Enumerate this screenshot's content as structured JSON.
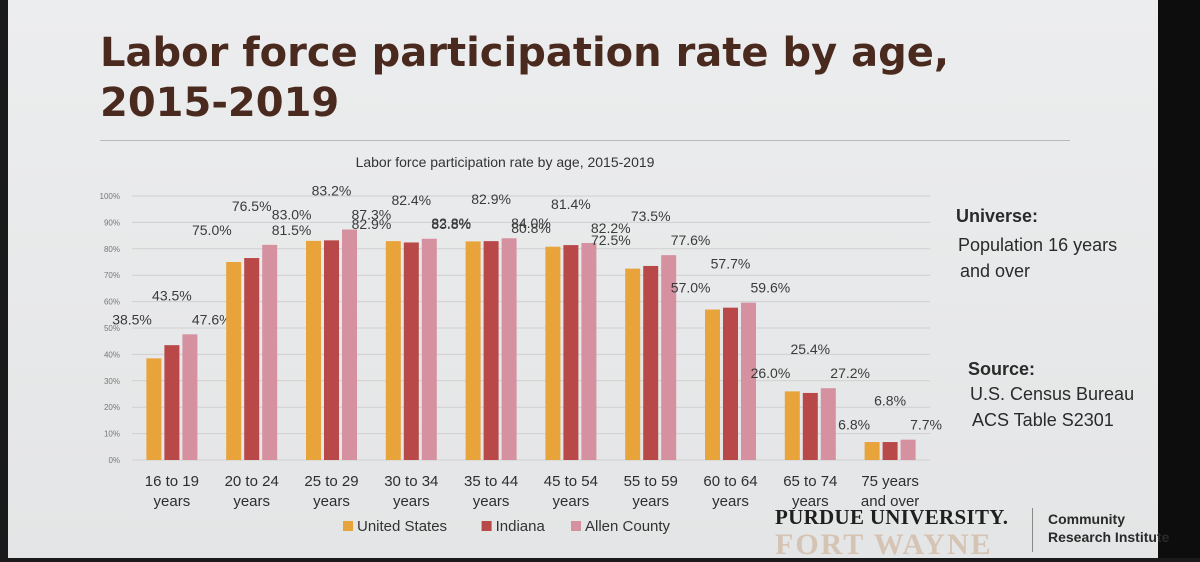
{
  "slide": {
    "title_line1": "Labor force participation rate by age,",
    "title_line2": "2015-2019"
  },
  "side": {
    "universe_label": "Universe:",
    "universe_line1": "Population 16 years",
    "universe_line2": "and over",
    "source_label": "Source:",
    "source_line1": "U.S. Census Bureau",
    "source_line2": "ACS Table S2301"
  },
  "footer": {
    "university": "PURDUE UNIVERSITY.",
    "campus": "FORT WAYNE",
    "institute_line1": "Community",
    "institute_line2": "Research Institute"
  },
  "chart_data": {
    "type": "bar",
    "title": "Labor force participation rate by age, 2015-2019",
    "categories": [
      [
        "16 to 19",
        "years"
      ],
      [
        "20 to 24",
        "years"
      ],
      [
        "25 to 29",
        "years"
      ],
      [
        "30 to 34",
        "years"
      ],
      [
        "35 to 44",
        "years"
      ],
      [
        "45 to 54",
        "years"
      ],
      [
        "55 to 59",
        "years"
      ],
      [
        "60 to 64",
        "years"
      ],
      [
        "65 to 74",
        "years"
      ],
      [
        "75 years",
        "and over"
      ]
    ],
    "series": [
      {
        "name": "United States",
        "color": "#e8a33b",
        "values": [
          38.5,
          75.0,
          83.0,
          82.9,
          82.8,
          80.8,
          72.5,
          57.0,
          26.0,
          6.8
        ],
        "labels": [
          "38.5%",
          "75.0%",
          "83.0%",
          "82.9%",
          "82.8%",
          "80.8%",
          "72.5%",
          "57.0%",
          "26.0%",
          "6.8%"
        ]
      },
      {
        "name": "Indiana",
        "color": "#b94848",
        "values": [
          43.5,
          76.5,
          83.2,
          82.4,
          82.9,
          81.4,
          73.5,
          57.7,
          25.4,
          6.8
        ],
        "labels": [
          "43.5%",
          "76.5%",
          "83.2%",
          "82.4%",
          "82.9%",
          "81.4%",
          "73.5%",
          "57.7%",
          "25.4%",
          "6.8%"
        ]
      },
      {
        "name": "Allen County",
        "color": "#d591a0",
        "values": [
          47.6,
          81.5,
          87.3,
          83.8,
          84.0,
          82.2,
          77.6,
          59.6,
          27.2,
          7.7
        ],
        "labels": [
          "47.6%",
          "81.5%",
          "87.3%",
          "83.8%",
          "84.0%",
          "82.2%",
          "77.6%",
          "59.6%",
          "27.2%",
          "7.7%"
        ]
      }
    ],
    "yticks": [
      "0%",
      "10%",
      "20%",
      "30%",
      "40%",
      "50%",
      "60%",
      "70%",
      "80%",
      "90%",
      "100%"
    ],
    "ylim": [
      0,
      100
    ],
    "grid": true,
    "legend_position": "bottom"
  }
}
